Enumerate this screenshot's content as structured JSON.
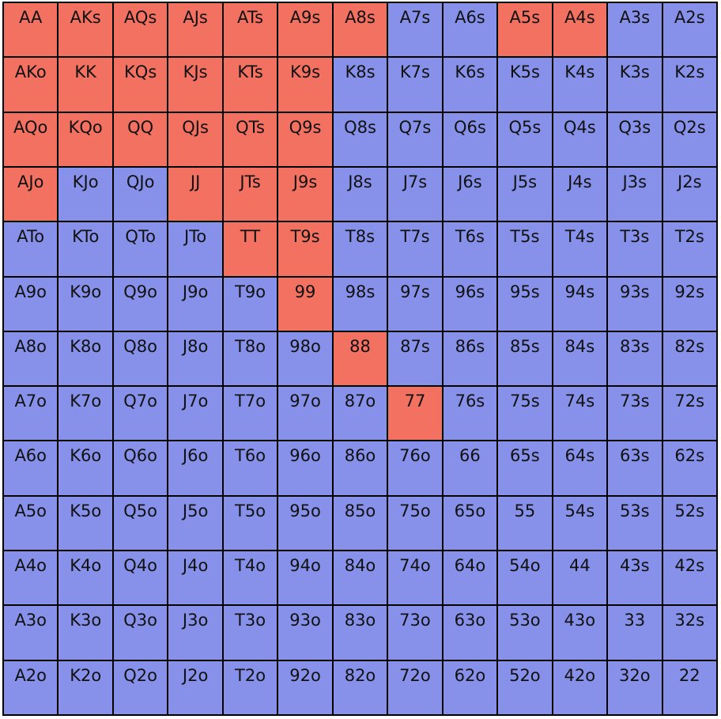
{
  "colors": {
    "selected": "#f37161",
    "unselected": "#8791ea",
    "border": "#000000"
  },
  "rows": [
    [
      {
        "hand": "AA",
        "selected": true
      },
      {
        "hand": "AKs",
        "selected": true
      },
      {
        "hand": "AQs",
        "selected": true
      },
      {
        "hand": "AJs",
        "selected": true
      },
      {
        "hand": "ATs",
        "selected": true
      },
      {
        "hand": "A9s",
        "selected": true
      },
      {
        "hand": "A8s",
        "selected": true
      },
      {
        "hand": "A7s",
        "selected": false
      },
      {
        "hand": "A6s",
        "selected": false
      },
      {
        "hand": "A5s",
        "selected": true
      },
      {
        "hand": "A4s",
        "selected": true
      },
      {
        "hand": "A3s",
        "selected": false
      },
      {
        "hand": "A2s",
        "selected": false
      }
    ],
    [
      {
        "hand": "AKo",
        "selected": true
      },
      {
        "hand": "KK",
        "selected": true
      },
      {
        "hand": "KQs",
        "selected": true
      },
      {
        "hand": "KJs",
        "selected": true
      },
      {
        "hand": "KTs",
        "selected": true
      },
      {
        "hand": "K9s",
        "selected": true
      },
      {
        "hand": "K8s",
        "selected": false
      },
      {
        "hand": "K7s",
        "selected": false
      },
      {
        "hand": "K6s",
        "selected": false
      },
      {
        "hand": "K5s",
        "selected": false
      },
      {
        "hand": "K4s",
        "selected": false
      },
      {
        "hand": "K3s",
        "selected": false
      },
      {
        "hand": "K2s",
        "selected": false
      }
    ],
    [
      {
        "hand": "AQo",
        "selected": true
      },
      {
        "hand": "KQo",
        "selected": true
      },
      {
        "hand": "QQ",
        "selected": true
      },
      {
        "hand": "QJs",
        "selected": true
      },
      {
        "hand": "QTs",
        "selected": true
      },
      {
        "hand": "Q9s",
        "selected": true
      },
      {
        "hand": "Q8s",
        "selected": false
      },
      {
        "hand": "Q7s",
        "selected": false
      },
      {
        "hand": "Q6s",
        "selected": false
      },
      {
        "hand": "Q5s",
        "selected": false
      },
      {
        "hand": "Q4s",
        "selected": false
      },
      {
        "hand": "Q3s",
        "selected": false
      },
      {
        "hand": "Q2s",
        "selected": false
      }
    ],
    [
      {
        "hand": "AJo",
        "selected": true
      },
      {
        "hand": "KJo",
        "selected": false
      },
      {
        "hand": "QJo",
        "selected": false
      },
      {
        "hand": "JJ",
        "selected": true
      },
      {
        "hand": "JTs",
        "selected": true
      },
      {
        "hand": "J9s",
        "selected": true
      },
      {
        "hand": "J8s",
        "selected": false
      },
      {
        "hand": "J7s",
        "selected": false
      },
      {
        "hand": "J6s",
        "selected": false
      },
      {
        "hand": "J5s",
        "selected": false
      },
      {
        "hand": "J4s",
        "selected": false
      },
      {
        "hand": "J3s",
        "selected": false
      },
      {
        "hand": "J2s",
        "selected": false
      }
    ],
    [
      {
        "hand": "ATo",
        "selected": false
      },
      {
        "hand": "KTo",
        "selected": false
      },
      {
        "hand": "QTo",
        "selected": false
      },
      {
        "hand": "JTo",
        "selected": false
      },
      {
        "hand": "TT",
        "selected": true
      },
      {
        "hand": "T9s",
        "selected": true
      },
      {
        "hand": "T8s",
        "selected": false
      },
      {
        "hand": "T7s",
        "selected": false
      },
      {
        "hand": "T6s",
        "selected": false
      },
      {
        "hand": "T5s",
        "selected": false
      },
      {
        "hand": "T4s",
        "selected": false
      },
      {
        "hand": "T3s",
        "selected": false
      },
      {
        "hand": "T2s",
        "selected": false
      }
    ],
    [
      {
        "hand": "A9o",
        "selected": false
      },
      {
        "hand": "K9o",
        "selected": false
      },
      {
        "hand": "Q9o",
        "selected": false
      },
      {
        "hand": "J9o",
        "selected": false
      },
      {
        "hand": "T9o",
        "selected": false
      },
      {
        "hand": "99",
        "selected": true
      },
      {
        "hand": "98s",
        "selected": false
      },
      {
        "hand": "97s",
        "selected": false
      },
      {
        "hand": "96s",
        "selected": false
      },
      {
        "hand": "95s",
        "selected": false
      },
      {
        "hand": "94s",
        "selected": false
      },
      {
        "hand": "93s",
        "selected": false
      },
      {
        "hand": "92s",
        "selected": false
      }
    ],
    [
      {
        "hand": "A8o",
        "selected": false
      },
      {
        "hand": "K8o",
        "selected": false
      },
      {
        "hand": "Q8o",
        "selected": false
      },
      {
        "hand": "J8o",
        "selected": false
      },
      {
        "hand": "T8o",
        "selected": false
      },
      {
        "hand": "98o",
        "selected": false
      },
      {
        "hand": "88",
        "selected": true
      },
      {
        "hand": "87s",
        "selected": false
      },
      {
        "hand": "86s",
        "selected": false
      },
      {
        "hand": "85s",
        "selected": false
      },
      {
        "hand": "84s",
        "selected": false
      },
      {
        "hand": "83s",
        "selected": false
      },
      {
        "hand": "82s",
        "selected": false
      }
    ],
    [
      {
        "hand": "A7o",
        "selected": false
      },
      {
        "hand": "K7o",
        "selected": false
      },
      {
        "hand": "Q7o",
        "selected": false
      },
      {
        "hand": "J7o",
        "selected": false
      },
      {
        "hand": "T7o",
        "selected": false
      },
      {
        "hand": "97o",
        "selected": false
      },
      {
        "hand": "87o",
        "selected": false
      },
      {
        "hand": "77",
        "selected": true
      },
      {
        "hand": "76s",
        "selected": false
      },
      {
        "hand": "75s",
        "selected": false
      },
      {
        "hand": "74s",
        "selected": false
      },
      {
        "hand": "73s",
        "selected": false
      },
      {
        "hand": "72s",
        "selected": false
      }
    ],
    [
      {
        "hand": "A6o",
        "selected": false
      },
      {
        "hand": "K6o",
        "selected": false
      },
      {
        "hand": "Q6o",
        "selected": false
      },
      {
        "hand": "J6o",
        "selected": false
      },
      {
        "hand": "T6o",
        "selected": false
      },
      {
        "hand": "96o",
        "selected": false
      },
      {
        "hand": "86o",
        "selected": false
      },
      {
        "hand": "76o",
        "selected": false
      },
      {
        "hand": "66",
        "selected": false
      },
      {
        "hand": "65s",
        "selected": false
      },
      {
        "hand": "64s",
        "selected": false
      },
      {
        "hand": "63s",
        "selected": false
      },
      {
        "hand": "62s",
        "selected": false
      }
    ],
    [
      {
        "hand": "A5o",
        "selected": false
      },
      {
        "hand": "K5o",
        "selected": false
      },
      {
        "hand": "Q5o",
        "selected": false
      },
      {
        "hand": "J5o",
        "selected": false
      },
      {
        "hand": "T5o",
        "selected": false
      },
      {
        "hand": "95o",
        "selected": false
      },
      {
        "hand": "85o",
        "selected": false
      },
      {
        "hand": "75o",
        "selected": false
      },
      {
        "hand": "65o",
        "selected": false
      },
      {
        "hand": "55",
        "selected": false
      },
      {
        "hand": "54s",
        "selected": false
      },
      {
        "hand": "53s",
        "selected": false
      },
      {
        "hand": "52s",
        "selected": false
      }
    ],
    [
      {
        "hand": "A4o",
        "selected": false
      },
      {
        "hand": "K4o",
        "selected": false
      },
      {
        "hand": "Q4o",
        "selected": false
      },
      {
        "hand": "J4o",
        "selected": false
      },
      {
        "hand": "T4o",
        "selected": false
      },
      {
        "hand": "94o",
        "selected": false
      },
      {
        "hand": "84o",
        "selected": false
      },
      {
        "hand": "74o",
        "selected": false
      },
      {
        "hand": "64o",
        "selected": false
      },
      {
        "hand": "54o",
        "selected": false
      },
      {
        "hand": "44",
        "selected": false
      },
      {
        "hand": "43s",
        "selected": false
      },
      {
        "hand": "42s",
        "selected": false
      }
    ],
    [
      {
        "hand": "A3o",
        "selected": false
      },
      {
        "hand": "K3o",
        "selected": false
      },
      {
        "hand": "Q3o",
        "selected": false
      },
      {
        "hand": "J3o",
        "selected": false
      },
      {
        "hand": "T3o",
        "selected": false
      },
      {
        "hand": "93o",
        "selected": false
      },
      {
        "hand": "83o",
        "selected": false
      },
      {
        "hand": "73o",
        "selected": false
      },
      {
        "hand": "63o",
        "selected": false
      },
      {
        "hand": "53o",
        "selected": false
      },
      {
        "hand": "43o",
        "selected": false
      },
      {
        "hand": "33",
        "selected": false
      },
      {
        "hand": "32s",
        "selected": false
      }
    ],
    [
      {
        "hand": "A2o",
        "selected": false
      },
      {
        "hand": "K2o",
        "selected": false
      },
      {
        "hand": "Q2o",
        "selected": false
      },
      {
        "hand": "J2o",
        "selected": false
      },
      {
        "hand": "T2o",
        "selected": false
      },
      {
        "hand": "92o",
        "selected": false
      },
      {
        "hand": "82o",
        "selected": false
      },
      {
        "hand": "72o",
        "selected": false
      },
      {
        "hand": "62o",
        "selected": false
      },
      {
        "hand": "52o",
        "selected": false
      },
      {
        "hand": "42o",
        "selected": false
      },
      {
        "hand": "32o",
        "selected": false
      },
      {
        "hand": "22",
        "selected": false
      }
    ]
  ]
}
